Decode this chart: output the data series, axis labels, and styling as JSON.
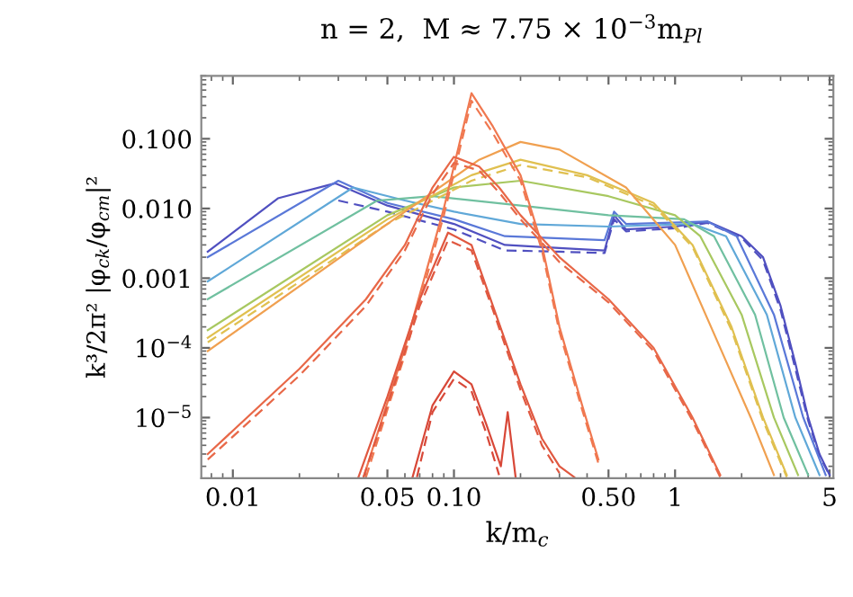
{
  "chart_data": {
    "type": "line",
    "title": "n = 2,  M ≈ 7.75 × 10$^{−3}$m$_{Pl}$",
    "xlabel": "k/m$_{c}$",
    "ylabel": "k³/2π² |φ$_{ck}$/φ$_{cm}$|²",
    "log": "xy",
    "grid": false,
    "marker": "none",
    "xlim": [
      0.0072,
      5.2
    ],
    "ylim": [
      1.35e-06,
      0.8
    ],
    "xticks": [
      {
        "value": 0.01,
        "label": "0.01"
      },
      {
        "value": 0.05,
        "label": "0.05"
      },
      {
        "value": 0.1,
        "label": "0.10"
      },
      {
        "value": 0.5,
        "label": "0.50"
      },
      1,
      5
    ],
    "yticks": [
      {
        "value": 1e-05,
        "label": "10$^{−5}$"
      },
      {
        "value": 0.0001,
        "label": "10$^{−4}$"
      },
      {
        "value": 0.001,
        "label": "0.001"
      },
      {
        "value": 0.01,
        "label": "0.010"
      },
      {
        "value": 0.1,
        "label": "0.100"
      }
    ],
    "series": [
      {
        "color": "#5050c0",
        "line_style": "solid",
        "x": [
          0.0077,
          0.016,
          0.029,
          0.05,
          0.1,
          0.17,
          0.3,
          0.48,
          0.53,
          0.6,
          1.0,
          1.4,
          2.0,
          2.5,
          3.0,
          3.5,
          4.0,
          4.5,
          5.0
        ],
        "values": [
          0.0024,
          0.014,
          0.023,
          0.011,
          0.006,
          0.003,
          0.0027,
          0.0025,
          0.008,
          0.005,
          0.0055,
          0.0065,
          0.004,
          0.002,
          0.0004,
          6e-05,
          1e-05,
          3e-06,
          1.5e-06
        ]
      },
      {
        "color": "#5050c0",
        "line_style": "dashed",
        "x": [
          0.03,
          0.05,
          0.1,
          0.17,
          0.3,
          0.48,
          0.53,
          0.6,
          1.0,
          1.4,
          2.0,
          2.5,
          3.0,
          3.5,
          4.0,
          4.5,
          5.0
        ],
        "values": [
          0.013,
          0.009,
          0.005,
          0.0025,
          0.0024,
          0.0023,
          0.007,
          0.0047,
          0.0052,
          0.0062,
          0.0038,
          0.0018,
          0.00035,
          5e-05,
          9e-06,
          2.8e-06,
          1.5e-06
        ]
      },
      {
        "color": "#5a78d8",
        "line_style": "solid",
        "x": [
          0.0077,
          0.03,
          0.05,
          0.1,
          0.17,
          0.48,
          0.53,
          0.6,
          1.4,
          1.9,
          2.8,
          3.8,
          4.8
        ],
        "values": [
          0.002,
          0.025,
          0.012,
          0.007,
          0.004,
          0.0035,
          0.009,
          0.006,
          0.0065,
          0.004,
          0.0003,
          1e-05,
          1.5e-06
        ]
      },
      {
        "color": "#60a8d8",
        "line_style": "solid",
        "x": [
          0.0077,
          0.035,
          0.06,
          0.1,
          0.2,
          0.5,
          1.2,
          1.7,
          2.6,
          3.5,
          4.5
        ],
        "values": [
          0.0009,
          0.02,
          0.013,
          0.009,
          0.006,
          0.0055,
          0.006,
          0.004,
          0.0003,
          1e-05,
          1.5e-06
        ]
      },
      {
        "color": "#70c0a0",
        "line_style": "solid",
        "x": [
          0.0077,
          0.045,
          0.08,
          0.2,
          0.5,
          1.1,
          1.5,
          2.3,
          3.1,
          4.0
        ],
        "values": [
          0.0005,
          0.013,
          0.015,
          0.011,
          0.008,
          0.007,
          0.004,
          0.0003,
          1e-05,
          1.5e-06
        ]
      },
      {
        "color": "#a8c860",
        "line_style": "solid",
        "x": [
          0.0077,
          0.05,
          0.1,
          0.2,
          0.5,
          1.0,
          1.3,
          2.0,
          2.8,
          3.6
        ],
        "values": [
          0.00018,
          0.008,
          0.02,
          0.025,
          0.015,
          0.008,
          0.004,
          0.0003,
          1e-05,
          1.5e-06
        ]
      },
      {
        "color": "#e0c050",
        "line_style": "solid",
        "x": [
          0.0077,
          0.05,
          0.12,
          0.2,
          0.4,
          0.8,
          1.2,
          1.8,
          2.5,
          3.2
        ],
        "values": [
          0.00014,
          0.007,
          0.03,
          0.05,
          0.03,
          0.012,
          0.003,
          0.0002,
          1e-05,
          1.5e-06
        ]
      },
      {
        "color": "#e0c050",
        "line_style": "dashed",
        "x": [
          0.0077,
          0.05,
          0.12,
          0.2,
          0.4,
          0.8,
          1.2,
          1.8,
          2.5,
          3.2
        ],
        "values": [
          0.00012,
          0.006,
          0.025,
          0.042,
          0.028,
          0.011,
          0.0028,
          0.00018,
          9e-06,
          1.4e-06
        ]
      },
      {
        "color": "#f0a050",
        "line_style": "solid",
        "x": [
          0.0077,
          0.05,
          0.13,
          0.2,
          0.3,
          0.6,
          1.0,
          1.6,
          2.2,
          2.8
        ],
        "values": [
          9e-05,
          0.006,
          0.05,
          0.09,
          0.07,
          0.02,
          0.003,
          0.0001,
          1e-05,
          1.5e-06
        ]
      },
      {
        "color": "#f07850",
        "line_style": "solid",
        "x": [
          0.039,
          0.06,
          0.09,
          0.12,
          0.15,
          0.2,
          0.25,
          0.3,
          0.38,
          0.45
        ],
        "values": [
          1.4e-06,
          0.0001,
          0.01,
          0.45,
          0.15,
          0.03,
          0.003,
          0.0002,
          1.5e-05,
          2.5e-06
        ]
      },
      {
        "color": "#f07850",
        "line_style": "dashed",
        "x": [
          0.04,
          0.06,
          0.09,
          0.12,
          0.15,
          0.2,
          0.25,
          0.3,
          0.38,
          0.45
        ],
        "values": [
          1.4e-06,
          8e-05,
          0.008,
          0.35,
          0.12,
          0.025,
          0.0025,
          0.00017,
          1.3e-05,
          2.2e-06
        ]
      },
      {
        "color": "#e86848",
        "line_style": "solid",
        "x": [
          0.0077,
          0.02,
          0.04,
          0.06,
          0.08,
          0.1,
          0.13,
          0.16,
          0.2,
          0.3,
          0.5,
          0.8,
          1.2,
          1.6
        ],
        "values": [
          3e-06,
          5e-05,
          0.0005,
          0.003,
          0.02,
          0.055,
          0.04,
          0.02,
          0.008,
          0.002,
          0.0005,
          0.0001,
          1e-05,
          1.5e-06
        ]
      },
      {
        "color": "#e86848",
        "line_style": "dashed",
        "x": [
          0.0077,
          0.02,
          0.04,
          0.06,
          0.08,
          0.1,
          0.13,
          0.16,
          0.2,
          0.3,
          0.5,
          0.8,
          1.2,
          1.6
        ],
        "values": [
          2.5e-06,
          4e-05,
          0.0004,
          0.0025,
          0.016,
          0.045,
          0.035,
          0.017,
          0.007,
          0.0017,
          0.00045,
          9e-05,
          9e-06,
          1.4e-06
        ]
      },
      {
        "color": "#e05840",
        "line_style": "solid",
        "x": [
          0.037,
          0.05,
          0.07,
          0.094,
          0.12,
          0.15,
          0.2,
          0.25,
          0.3,
          0.35
        ],
        "values": [
          1.4e-06,
          2e-05,
          0.0005,
          0.0045,
          0.003,
          0.0004,
          3e-05,
          5e-06,
          2e-06,
          1.4e-06
        ]
      },
      {
        "color": "#e05840",
        "line_style": "dashed",
        "x": [
          0.039,
          0.05,
          0.07,
          0.094,
          0.12,
          0.15,
          0.2,
          0.25,
          0.3
        ],
        "values": [
          1.4e-06,
          1.5e-05,
          0.0004,
          0.0035,
          0.0025,
          0.00035,
          2.5e-05,
          4e-06,
          1.6e-06
        ]
      },
      {
        "color": "#d84838",
        "line_style": "solid",
        "x": [
          0.065,
          0.08,
          0.1,
          0.12,
          0.14,
          0.163,
          0.175,
          0.19
        ],
        "values": [
          1.4e-06,
          1.5e-05,
          4.6e-05,
          3e-05,
          8e-06,
          2e-06,
          1.2e-05,
          1.4e-06
        ]
      },
      {
        "color": "#d84838",
        "line_style": "dashed",
        "x": [
          0.068,
          0.08,
          0.1,
          0.12,
          0.14,
          0.16
        ],
        "values": [
          1.4e-06,
          1.2e-05,
          3.6e-05,
          2.4e-05,
          6e-06,
          1.5e-06
        ]
      }
    ]
  }
}
